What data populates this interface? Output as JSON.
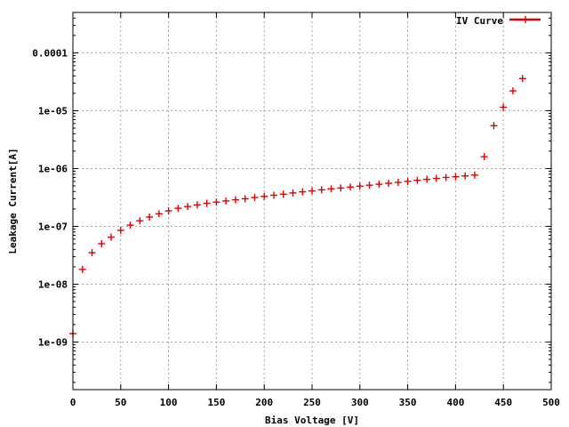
{
  "chart_data": {
    "type": "scatter",
    "xlabel": "Bias Voltage [V]",
    "ylabel": "Leakage Current[A]",
    "xlim": [
      0,
      500
    ],
    "ylim": [
      1.5e-10,
      0.0005
    ],
    "yscale": "log",
    "grid": true,
    "legend_position": "top-right",
    "x_ticks": [
      0,
      50,
      100,
      150,
      200,
      250,
      300,
      350,
      400,
      450,
      500
    ],
    "x_tick_labels": [
      "0",
      "50",
      "100",
      "150",
      "200",
      "250",
      "300",
      "350",
      "400",
      "450",
      "500"
    ],
    "y_ticks": [
      1e-09,
      1e-08,
      1e-07,
      1e-06,
      1e-05,
      0.0001
    ],
    "y_tick_labels": [
      "1e-09",
      "1e-08",
      "1e-07",
      "1e-06",
      "1e-05",
      "0.0001"
    ],
    "series": [
      {
        "name": "IV Curve",
        "color": "#e00000",
        "marker": "plus",
        "x": [
          0,
          10,
          20,
          30,
          40,
          50,
          60,
          70,
          80,
          90,
          100,
          110,
          120,
          130,
          140,
          150,
          160,
          170,
          180,
          190,
          200,
          210,
          220,
          230,
          240,
          250,
          260,
          270,
          280,
          290,
          300,
          310,
          320,
          330,
          340,
          350,
          360,
          370,
          380,
          390,
          400,
          410,
          420,
          430,
          440,
          450,
          460,
          470
        ],
        "y": [
          1.4e-09,
          1.8e-08,
          3.5e-08,
          5e-08,
          6.5e-08,
          8.5e-08,
          1.05e-07,
          1.25e-07,
          1.45e-07,
          1.65e-07,
          1.85e-07,
          2.05e-07,
          2.2e-07,
          2.35e-07,
          2.5e-07,
          2.62e-07,
          2.75e-07,
          2.88e-07,
          3e-07,
          3.15e-07,
          3.3e-07,
          3.45e-07,
          3.6e-07,
          3.78e-07,
          3.95e-07,
          4.1e-07,
          4.28e-07,
          4.45e-07,
          4.6e-07,
          4.78e-07,
          4.95e-07,
          5.15e-07,
          5.35e-07,
          5.55e-07,
          5.75e-07,
          6e-07,
          6.25e-07,
          6.5e-07,
          6.75e-07,
          7e-07,
          7.2e-07,
          7.45e-07,
          7.7e-07,
          1.6e-06,
          5.5e-06,
          1.15e-05,
          2.2e-05,
          3.6e-05
        ]
      }
    ]
  }
}
